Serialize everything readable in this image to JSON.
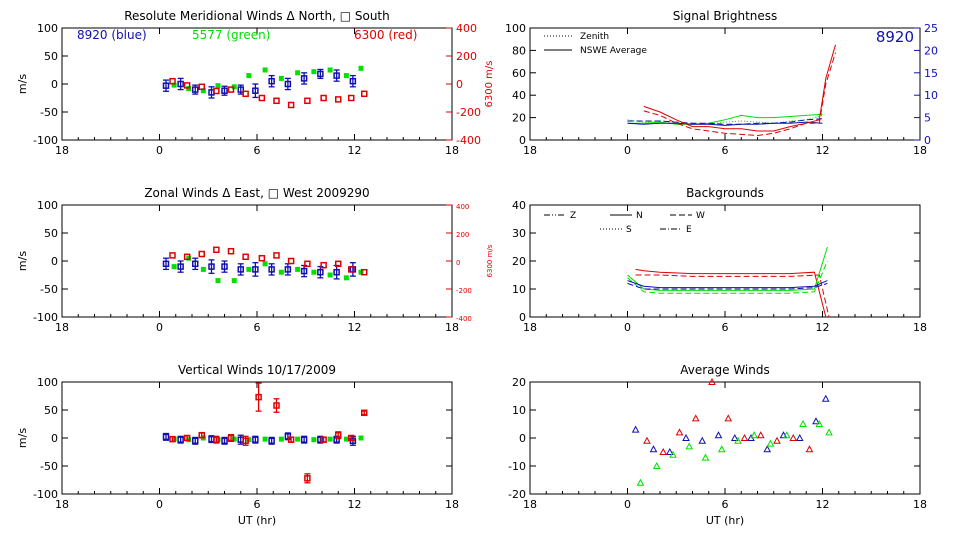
{
  "colors": {
    "blue": "#1010b0",
    "green": "#00e000",
    "red": "#e00000",
    "axis": "#000000"
  },
  "chart_data": [
    {
      "id": "meridional",
      "type": "scatter",
      "title": "Resolute Meridional Winds Δ North, □ South",
      "ylabel": "m/s",
      "ylabel_right": "6300 m/s",
      "xticks": [
        "18",
        "0",
        "6",
        "12",
        "18"
      ],
      "yticks": [
        "100",
        "50",
        "0",
        "-50",
        "-100"
      ],
      "yticks_right": [
        "400",
        "200",
        "0",
        "-200",
        "-400"
      ],
      "ylim": [
        -100,
        100
      ],
      "ylim_right": [
        -400,
        400
      ],
      "legend": [
        {
          "text": "8920 (blue)",
          "color": "blue"
        },
        {
          "text": "5577 (green)",
          "color": "green"
        },
        {
          "text": "6300 (red)",
          "color": "red"
        }
      ],
      "series": [
        {
          "color": "blue",
          "errorbars": true,
          "x": [
            0.4,
            1.3,
            2.2,
            3.2,
            4.0,
            5.0,
            5.9,
            6.9,
            7.9,
            8.9,
            9.9,
            10.9,
            11.9
          ],
          "y": [
            -3,
            0,
            -10,
            -15,
            -12,
            -10,
            -12,
            5,
            0,
            10,
            18,
            15,
            5
          ],
          "err": [
            10,
            10,
            8,
            10,
            8,
            8,
            12,
            10,
            10,
            10,
            8,
            10,
            10
          ]
        },
        {
          "color": "green",
          "x": [
            0.9,
            1.8,
            2.7,
            3.6,
            4.6,
            5.5,
            6.5,
            7.5,
            8.5,
            9.5,
            10.5,
            11.5,
            12.4
          ],
          "y": [
            -2,
            -8,
            -12,
            -3,
            -5,
            15,
            25,
            10,
            20,
            22,
            25,
            15,
            28
          ]
        },
        {
          "color": "red",
          "x": [
            0.8,
            1.7,
            2.6,
            3.5,
            4.4,
            5.3,
            6.3,
            7.2,
            8.1,
            9.1,
            10.1,
            11.0,
            11.8,
            12.6
          ],
          "y": [
            20,
            -10,
            -20,
            -50,
            -40,
            -70,
            -100,
            -120,
            -150,
            -120,
            -100,
            -110,
            -100,
            -70
          ]
        }
      ]
    },
    {
      "id": "zonal",
      "type": "scatter",
      "title": "Zonal Winds Δ East, □ West 2009290",
      "ylabel": "m/s",
      "ylabel_right": "6300 m/s",
      "xticks": [
        "18",
        "0",
        "6",
        "12",
        "18"
      ],
      "yticks": [
        "100",
        "50",
        "0",
        "-50",
        "-100"
      ],
      "yticks_right": [
        "400",
        "200",
        "0",
        "-200",
        "-400"
      ],
      "ylim": [
        -100,
        100
      ],
      "ylim_right": [
        -400,
        400
      ],
      "series": [
        {
          "color": "blue",
          "errorbars": true,
          "x": [
            0.4,
            1.3,
            2.2,
            3.2,
            4.0,
            5.0,
            5.9,
            6.9,
            7.9,
            8.9,
            9.9,
            10.9,
            11.9
          ],
          "y": [
            -5,
            -10,
            -5,
            -10,
            -10,
            -15,
            -15,
            -15,
            -15,
            -18,
            -20,
            -20,
            -15
          ],
          "err": [
            10,
            10,
            10,
            12,
            10,
            10,
            12,
            10,
            10,
            10,
            10,
            12,
            12
          ]
        },
        {
          "color": "green",
          "x": [
            0.9,
            1.8,
            2.7,
            3.6,
            4.6,
            5.5,
            6.5,
            7.5,
            8.5,
            9.5,
            10.5,
            11.5,
            12.4
          ],
          "y": [
            -10,
            5,
            -15,
            -35,
            -35,
            -15,
            -5,
            -20,
            -15,
            -20,
            -25,
            -30,
            -20
          ]
        },
        {
          "color": "red",
          "x": [
            0.8,
            1.7,
            2.6,
            3.5,
            4.4,
            5.3,
            6.3,
            7.2,
            8.1,
            9.1,
            10.1,
            11.0,
            11.8,
            12.6
          ],
          "y": [
            40,
            30,
            50,
            80,
            70,
            30,
            20,
            40,
            0,
            -20,
            -30,
            -20,
            -60,
            -80
          ]
        }
      ]
    },
    {
      "id": "vertical",
      "type": "scatter",
      "title": "Vertical Winds 10/17/2009",
      "ylabel": "m/s",
      "xlabel": "UT (hr)",
      "xticks": [
        "18",
        "0",
        "6",
        "12",
        "18"
      ],
      "yticks": [
        "100",
        "50",
        "0",
        "-50",
        "-100"
      ],
      "ylim": [
        -100,
        100
      ],
      "series": [
        {
          "color": "blue",
          "errorbars": true,
          "x": [
            0.4,
            1.3,
            2.2,
            3.2,
            4.0,
            5.0,
            5.9,
            6.9,
            7.9,
            8.9,
            9.9,
            10.9,
            11.9
          ],
          "y": [
            2,
            -3,
            -5,
            -2,
            -5,
            -3,
            -3,
            -5,
            3,
            -3,
            -3,
            -3,
            -5
          ],
          "err": [
            6,
            6,
            6,
            6,
            6,
            8,
            6,
            6,
            6,
            6,
            6,
            6,
            8
          ]
        },
        {
          "color": "green",
          "x": [
            0.9,
            1.8,
            2.7,
            3.6,
            4.6,
            5.5,
            6.5,
            7.5,
            8.5,
            9.5,
            10.5,
            11.5,
            12.4
          ],
          "y": [
            -2,
            -3,
            0,
            -3,
            -2,
            -3,
            -2,
            -2,
            -2,
            -3,
            -2,
            -2,
            0
          ]
        },
        {
          "color": "red",
          "errorbars": true,
          "x": [
            0.8,
            1.7,
            2.6,
            3.5,
            4.4,
            5.3,
            6.1,
            7.2,
            8.1,
            9.1,
            10.1,
            11.0,
            11.8,
            12.6
          ],
          "y": [
            -2,
            0,
            5,
            -3,
            0,
            -5,
            73,
            58,
            -3,
            -72,
            -3,
            5,
            0,
            45
          ],
          "err": [
            4,
            4,
            4,
            6,
            6,
            8,
            25,
            12,
            4,
            8,
            4,
            6,
            4,
            3
          ]
        }
      ]
    },
    {
      "id": "brightness",
      "type": "line",
      "title": "Signal Brightness",
      "xticks": [
        "18",
        "0",
        "6",
        "12",
        "18"
      ],
      "yticks": [
        "100",
        "80",
        "60",
        "40",
        "20",
        "0"
      ],
      "yticks_right": [
        "25",
        "20",
        "15",
        "10",
        "5",
        "0"
      ],
      "ylim": [
        0,
        100
      ],
      "ylim_right": [
        0,
        25
      ],
      "annotation": "8920",
      "legend": [
        {
          "text": "Zenith",
          "style": "dotted"
        },
        {
          "text": "NSWE Average",
          "style": "solid"
        }
      ],
      "series": [
        {
          "name": "Zenith",
          "color": "green",
          "style": "dotted",
          "x": [
            0,
            1,
            2,
            3,
            4,
            5,
            6,
            7,
            8,
            9,
            10,
            11,
            12
          ],
          "y": [
            18,
            16,
            17,
            16,
            14,
            14,
            16,
            17,
            16,
            15,
            17,
            18,
            22
          ]
        },
        {
          "name": "NSWE Average",
          "color": "green",
          "style": "solid",
          "x": [
            0,
            1,
            2,
            3,
            4,
            5,
            6,
            7,
            8,
            9,
            10,
            11,
            12
          ],
          "y": [
            15,
            15,
            16,
            14,
            14,
            15,
            18,
            22,
            20,
            20,
            21,
            22,
            23
          ]
        },
        {
          "color": "blue",
          "style": "solid",
          "x": [
            0,
            1,
            2,
            3,
            4,
            5,
            6,
            7,
            8,
            9,
            10,
            11,
            12
          ],
          "y": [
            15,
            14,
            15,
            15,
            14,
            14,
            13,
            14,
            14,
            15,
            15,
            16,
            15
          ]
        },
        {
          "color": "blue",
          "style": "dashed",
          "x": [
            0,
            1,
            2,
            3,
            4,
            5,
            6,
            7,
            8,
            9,
            10,
            11,
            12
          ],
          "y": [
            17,
            17,
            17,
            16,
            15,
            15,
            14,
            14,
            15,
            15,
            16,
            18,
            19
          ]
        },
        {
          "color": "red",
          "style": "solid",
          "x": [
            1,
            2,
            3,
            4,
            5,
            6,
            7,
            8,
            9,
            10,
            11,
            11.8,
            12.2,
            12.8
          ],
          "y": [
            30,
            25,
            18,
            12,
            12,
            10,
            10,
            8,
            8,
            12,
            15,
            18,
            55,
            85
          ]
        },
        {
          "color": "red",
          "style": "dashed",
          "x": [
            1,
            2,
            3,
            4,
            5,
            6,
            7,
            8,
            9,
            10,
            11,
            11.8,
            12.2,
            12.8
          ],
          "y": [
            26,
            22,
            15,
            10,
            8,
            6,
            5,
            4,
            6,
            10,
            15,
            15,
            50,
            78
          ]
        }
      ]
    },
    {
      "id": "backgrounds",
      "type": "line",
      "title": "Backgrounds",
      "xticks": [
        "18",
        "0",
        "6",
        "12",
        "18"
      ],
      "yticks": [
        "40",
        "30",
        "20",
        "10",
        "0"
      ],
      "ylim": [
        0,
        40
      ],
      "legend": [
        {
          "text": "Z",
          "style": "dashdotdot"
        },
        {
          "text": "N",
          "style": "solid"
        },
        {
          "text": "W",
          "style": "dashed"
        },
        {
          "text": "S",
          "style": "dotted"
        },
        {
          "text": "E",
          "style": "dashdot"
        }
      ],
      "series": [
        {
          "color": "red",
          "style": "solid",
          "x": [
            0.5,
            1,
            2,
            4,
            6,
            8,
            10,
            11.5,
            12.2
          ],
          "y": [
            17,
            16.5,
            16,
            15.5,
            15.5,
            15.5,
            15.5,
            16,
            0
          ]
        },
        {
          "color": "red",
          "style": "dashed",
          "x": [
            0.5,
            1,
            2,
            4,
            6,
            8,
            10,
            11.8,
            12.4
          ],
          "y": [
            15,
            15,
            15,
            14.5,
            14.5,
            14.5,
            14.5,
            15,
            0
          ]
        },
        {
          "color": "green",
          "style": "solid",
          "x": [
            0,
            1,
            2,
            4,
            6,
            8,
            10,
            11.5,
            12.3
          ],
          "y": [
            15,
            10,
            9.5,
            9.5,
            9.5,
            9.5,
            9.5,
            10,
            25
          ]
        },
        {
          "color": "green",
          "style": "dashed",
          "x": [
            0,
            1,
            2,
            4,
            6,
            8,
            10,
            11.5,
            12.3
          ],
          "y": [
            14,
            9,
            8.5,
            8.5,
            8.5,
            8.5,
            8.5,
            9,
            20
          ]
        },
        {
          "color": "blue",
          "style": "solid",
          "x": [
            0,
            1,
            2,
            4,
            6,
            8,
            10,
            11.5,
            12.3
          ],
          "y": [
            13,
            11,
            10.5,
            10.5,
            10.5,
            10.5,
            10.5,
            11,
            13
          ]
        },
        {
          "color": "blue",
          "style": "dashed",
          "x": [
            0,
            1,
            2,
            4,
            6,
            8,
            10,
            11.5,
            12.3
          ],
          "y": [
            12,
            10,
            10,
            10,
            10,
            10,
            10,
            10.5,
            12
          ]
        }
      ]
    },
    {
      "id": "average",
      "type": "scatter",
      "title": "Average Winds",
      "xlabel": "UT (hr)",
      "xticks": [
        "18",
        "0",
        "6",
        "12",
        "18"
      ],
      "yticks": [
        "20",
        "10",
        "0",
        "-10",
        "-20"
      ],
      "ylim": [
        -20,
        20
      ],
      "series": [
        {
          "color": "blue",
          "marker": "triangle",
          "x": [
            0.5,
            1.6,
            2.6,
            3.6,
            4.6,
            5.6,
            6.6,
            7.6,
            8.6,
            9.6,
            10.6,
            11.6,
            12.2
          ],
          "y": [
            3,
            -4,
            -5,
            0,
            -1,
            1,
            0,
            0,
            -4,
            1,
            0,
            6,
            14
          ]
        },
        {
          "color": "green",
          "marker": "triangle",
          "x": [
            0.8,
            1.8,
            2.8,
            3.8,
            4.8,
            5.8,
            6.8,
            7.8,
            8.8,
            9.8,
            10.8,
            11.8,
            12.4
          ],
          "y": [
            -16,
            -10,
            -6,
            -3,
            -7,
            -4,
            -1,
            1,
            -2,
            1,
            5,
            5,
            2
          ]
        },
        {
          "color": "red",
          "marker": "triangle",
          "x": [
            1.2,
            2.2,
            3.2,
            4.2,
            5.2,
            6.2,
            7.2,
            8.2,
            9.2,
            10.2,
            11.2
          ],
          "y": [
            -1,
            -5,
            2,
            7,
            20,
            7,
            0,
            1,
            -1,
            0,
            -4
          ]
        }
      ]
    }
  ]
}
